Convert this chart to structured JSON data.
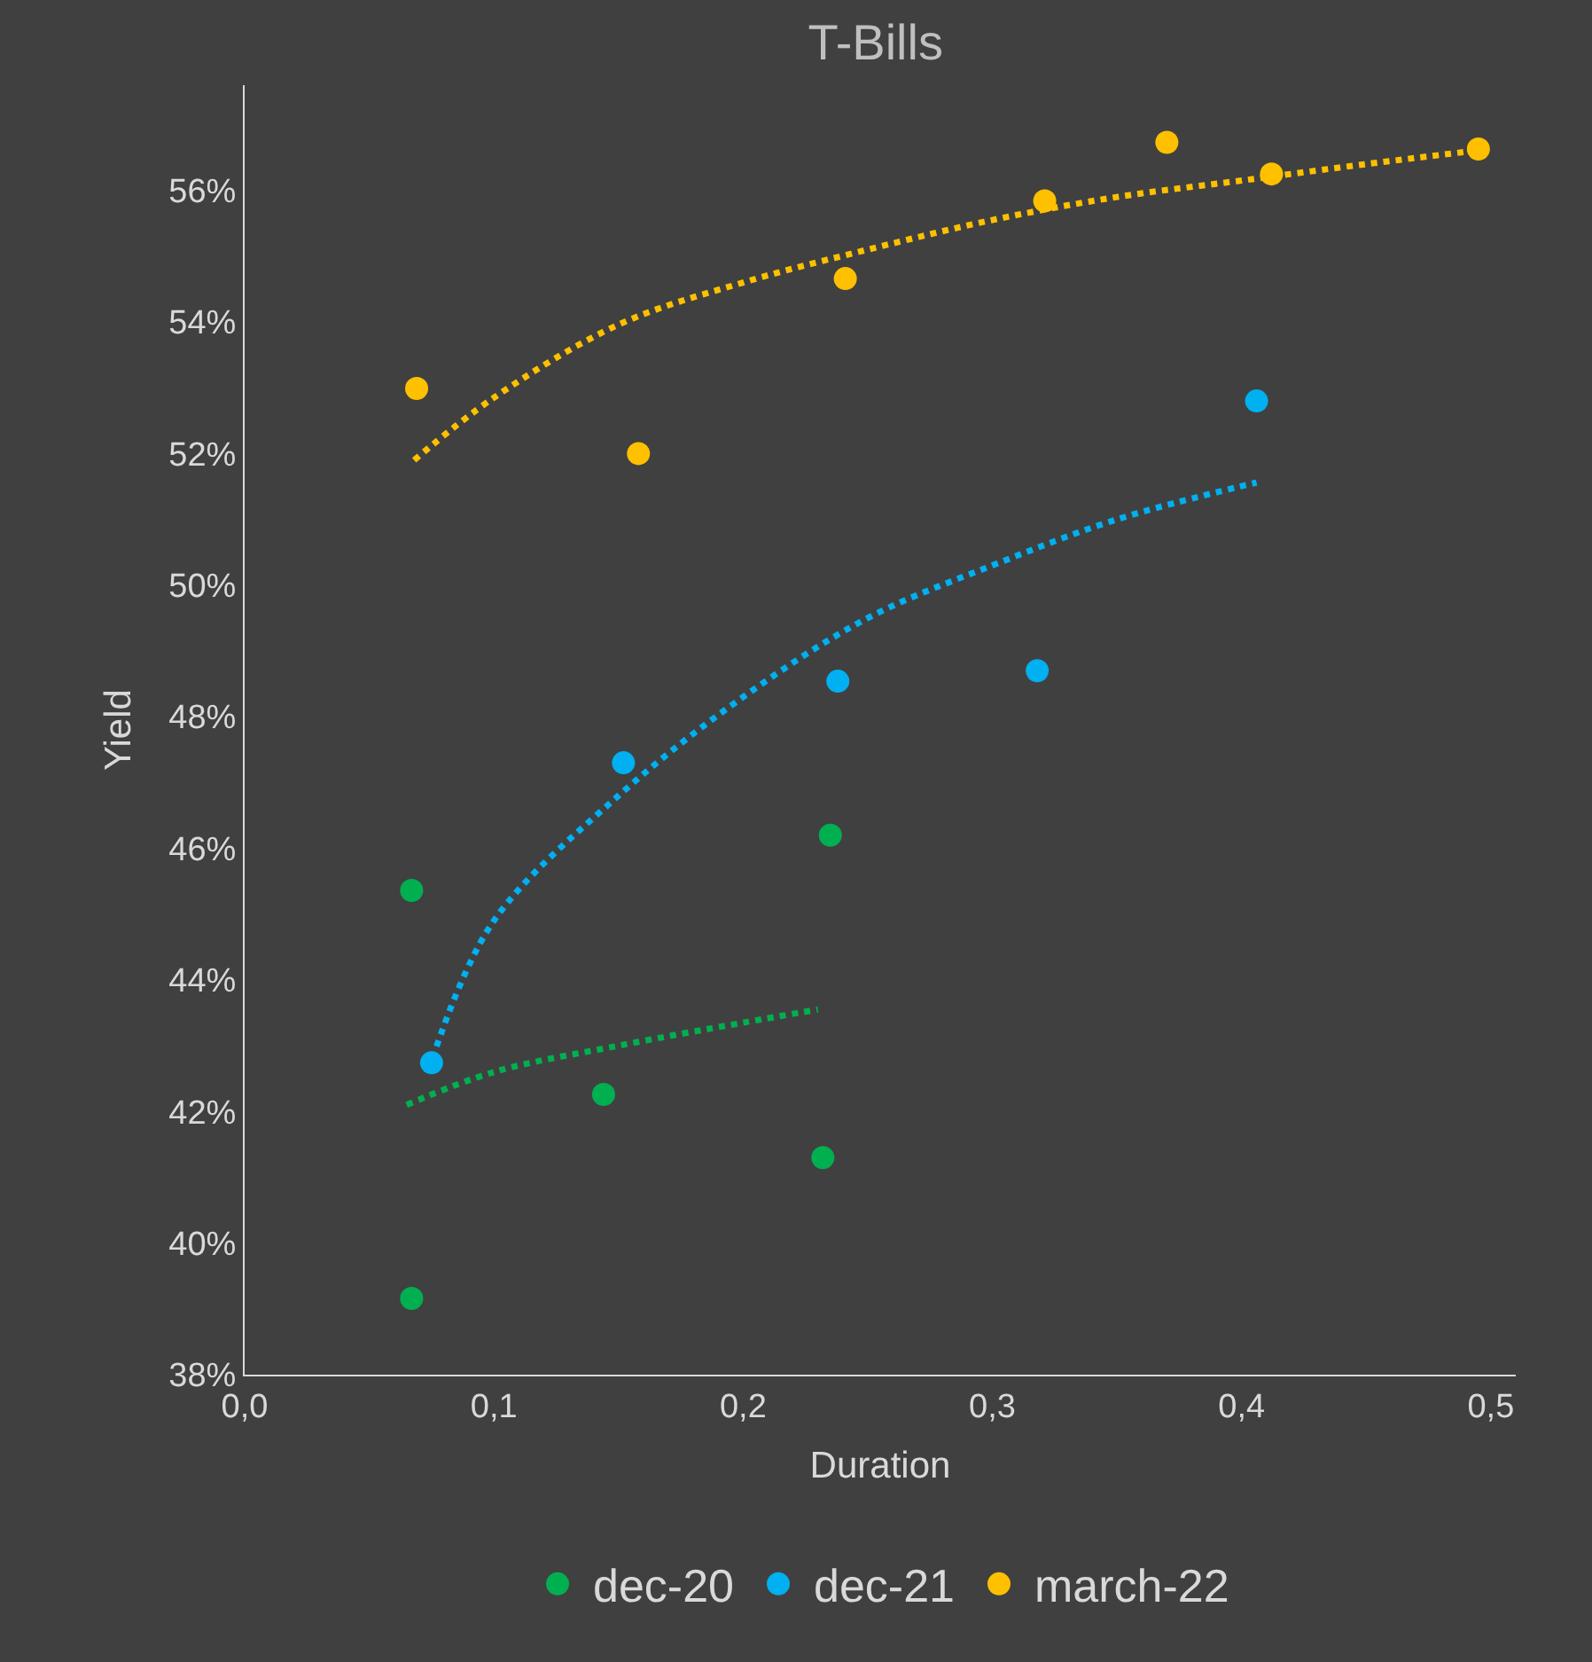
{
  "chart_data": {
    "type": "scatter",
    "title": "T-Bills",
    "xlabel": "Duration",
    "ylabel": "Yield",
    "xlim": [
      0,
      0.51
    ],
    "ylim": [
      38,
      57.6
    ],
    "xticks": [
      {
        "value": 0,
        "label": "0,0"
      },
      {
        "value": 0.1,
        "label": "0,1"
      },
      {
        "value": 0.2,
        "label": "0,2"
      },
      {
        "value": 0.3,
        "label": "0,3"
      },
      {
        "value": 0.4,
        "label": "0,4"
      },
      {
        "value": 0.5,
        "label": "0,5"
      }
    ],
    "yticks": [
      {
        "value": 38,
        "label": "38%"
      },
      {
        "value": 40,
        "label": "40%"
      },
      {
        "value": 42,
        "label": "42%"
      },
      {
        "value": 44,
        "label": "44%"
      },
      {
        "value": 46,
        "label": "46%"
      },
      {
        "value": 48,
        "label": "48%"
      },
      {
        "value": 50,
        "label": "50%"
      },
      {
        "value": 52,
        "label": "52%"
      },
      {
        "value": 54,
        "label": "54%"
      },
      {
        "value": 56,
        "label": "56%"
      }
    ],
    "grid": false,
    "legend": "bottom",
    "series": [
      {
        "name": "dec-20",
        "marker": "circle",
        "color": "#00b050",
        "x": [
          0.067,
          0.067,
          0.144,
          0.235,
          0.232
        ],
        "values": [
          45.36,
          39.16,
          42.26,
          46.2,
          41.3
        ]
      },
      {
        "name": "dec-21",
        "marker": "circle",
        "color": "#00b0f0",
        "x": [
          0.075,
          0.152,
          0.238,
          0.318,
          0.406
        ],
        "values": [
          42.74,
          47.3,
          48.54,
          48.7,
          52.8
        ]
      },
      {
        "name": "march-22",
        "marker": "circle",
        "color": "#ffc000",
        "x": [
          0.069,
          0.158,
          0.241,
          0.321,
          0.37,
          0.412,
          0.495
        ],
        "values": [
          52.99,
          52.0,
          54.66,
          55.84,
          56.73,
          56.25,
          56.63
        ]
      },
      {
        "type": "line",
        "marker": "none",
        "line_style": "dotted",
        "color": "#00b050",
        "x": [
          0.065,
          0.1,
          0.15,
          0.2,
          0.23
        ],
        "values": [
          42.1,
          42.6,
          43.0,
          43.35,
          43.55
        ]
      },
      {
        "type": "line",
        "marker": "none",
        "line_style": "dotted",
        "color": "#00b0f0",
        "x": [
          0.077,
          0.1,
          0.15,
          0.2,
          0.25,
          0.3,
          0.35,
          0.406
        ],
        "values": [
          42.99,
          44.9,
          46.8,
          48.3,
          49.5,
          50.3,
          51.0,
          51.56
        ]
      },
      {
        "type": "line",
        "marker": "none",
        "line_style": "dotted",
        "color": "#ffc000",
        "x": [
          0.068,
          0.1,
          0.15,
          0.2,
          0.25,
          0.3,
          0.35,
          0.4,
          0.45,
          0.493
        ],
        "values": [
          51.9,
          52.85,
          53.96,
          54.6,
          55.1,
          55.55,
          55.9,
          56.15,
          56.4,
          56.6
        ]
      }
    ]
  }
}
